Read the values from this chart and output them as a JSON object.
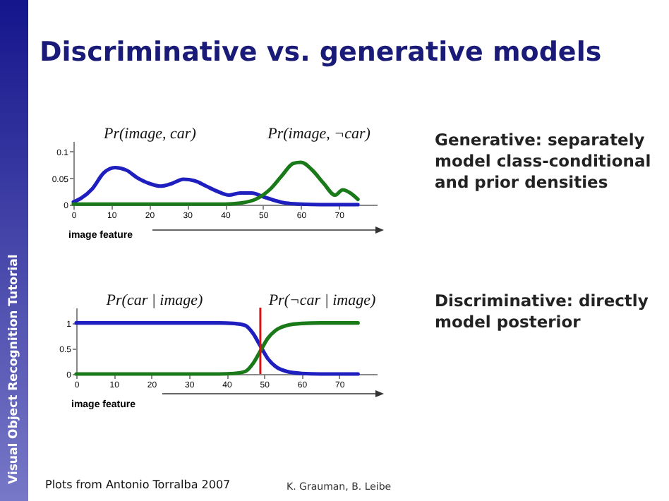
{
  "chart_data": [
    {
      "type": "line",
      "xlabel": "image feature",
      "xlim": [
        0,
        80
      ],
      "xticks": [
        0,
        10,
        20,
        30,
        40,
        50,
        60,
        70
      ],
      "ylim": [
        0,
        0.12
      ],
      "yticks": [
        0,
        0.05,
        0.1
      ],
      "series": [
        {
          "name": "Pr(image, car)",
          "color": "#1f1fbf",
          "x": [
            0,
            2,
            5,
            8,
            11,
            14,
            17,
            20,
            23,
            26,
            29,
            32,
            35,
            38,
            41,
            44,
            47,
            50,
            53,
            56,
            60,
            65,
            75
          ],
          "values": [
            0.005,
            0.012,
            0.03,
            0.06,
            0.07,
            0.065,
            0.05,
            0.04,
            0.035,
            0.04,
            0.048,
            0.045,
            0.035,
            0.025,
            0.018,
            0.022,
            0.022,
            0.015,
            0.008,
            0.003,
            0.001,
            0,
            0
          ]
        },
        {
          "name": "Pr(image, ¬car)",
          "color": "#1a7a1a",
          "x": [
            0,
            40,
            44,
            48,
            52,
            55,
            58,
            60,
            63,
            66,
            69,
            71,
            73,
            75
          ],
          "values": [
            0.001,
            0.001,
            0.003,
            0.01,
            0.03,
            0.055,
            0.078,
            0.08,
            0.065,
            0.04,
            0.018,
            0.028,
            0.022,
            0.01
          ]
        }
      ]
    },
    {
      "type": "line",
      "xlabel": "image feature",
      "xlim": [
        0,
        80
      ],
      "xticks": [
        0,
        10,
        20,
        30,
        40,
        50,
        60,
        70
      ],
      "ylim": [
        0,
        1.3
      ],
      "yticks": [
        0,
        0.5,
        1
      ],
      "series": [
        {
          "name": "Pr(car | image)",
          "color": "#1f1fbf",
          "x": [
            0,
            38,
            42,
            45,
            47,
            49,
            51,
            53,
            56,
            60,
            65,
            75
          ],
          "values": [
            1,
            1,
            0.99,
            0.95,
            0.8,
            0.55,
            0.3,
            0.15,
            0.05,
            0.01,
            0,
            0
          ]
        },
        {
          "name": "Pr(¬car | image)",
          "color": "#1a7a1a",
          "x": [
            0,
            38,
            42,
            45,
            47,
            49,
            51,
            53,
            56,
            60,
            65,
            75
          ],
          "values": [
            0,
            0,
            0.01,
            0.05,
            0.2,
            0.45,
            0.7,
            0.85,
            0.95,
            0.99,
            1,
            1
          ]
        }
      ],
      "ref_lines": [
        {
          "axis": "x",
          "value": 49,
          "color": "#dd1111"
        }
      ]
    },
    {
      "type": "other",
      "title": "Discriminative vs. generative models",
      "annotations": [
        "Generative: separately model class-conditional and prior densities",
        "Discriminative: directly model posterior",
        "Plots from Antonio Torralba 2007",
        "K. Grauman, B. Leibe",
        "Visual Object Recognition Tutorial"
      ]
    }
  ]
}
